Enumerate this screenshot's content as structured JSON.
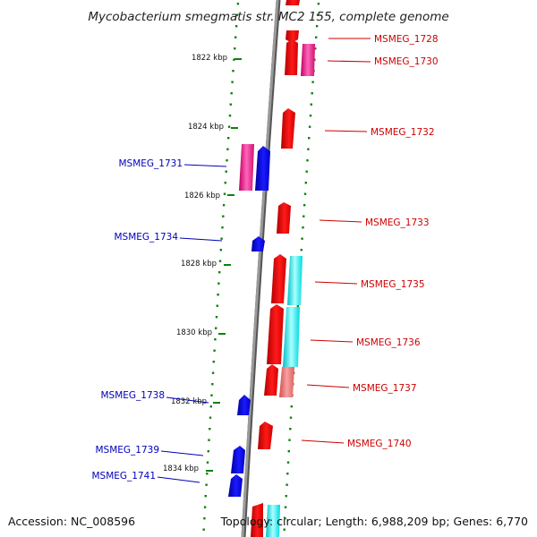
{
  "title": "Mycobacterium smegmatis str. MC2 155, complete genome",
  "footer": {
    "accession": "Accession: NC_008596",
    "summary": "Topology: circular; Length: 6,988,209 bp; Genes: 6,770"
  },
  "colors": {
    "forward": "#ff0000",
    "reverse": "#0000ee",
    "magenta": "#ee1188",
    "cyan": "#00e5ee",
    "pink": "#e87070",
    "backbone": "#888888",
    "label_forward": "#cc0000",
    "label_reverse": "#0000bb",
    "dots": "#108010"
  },
  "ticks": [
    {
      "label": "1822 kbp"
    },
    {
      "label": "1824 kbp"
    },
    {
      "label": "1826 kbp"
    },
    {
      "label": "1828 kbp"
    },
    {
      "label": "1830 kbp"
    },
    {
      "label": "1832 kbp"
    },
    {
      "label": "1834 kbp"
    }
  ],
  "genes_forward": [
    {
      "label": "MSMEG_1728"
    },
    {
      "label": "MSMEG_1730"
    },
    {
      "label": "MSMEG_1732"
    },
    {
      "label": "MSMEG_1733"
    },
    {
      "label": "MSMEG_1735"
    },
    {
      "label": "MSMEG_1736"
    },
    {
      "label": "MSMEG_1737"
    },
    {
      "label": "MSMEG_1740"
    }
  ],
  "genes_reverse": [
    {
      "label": "MSMEG_1731"
    },
    {
      "label": "MSMEG_1734"
    },
    {
      "label": "MSMEG_1738"
    },
    {
      "label": "MSMEG_1739"
    },
    {
      "label": "MSMEG_1741"
    }
  ]
}
